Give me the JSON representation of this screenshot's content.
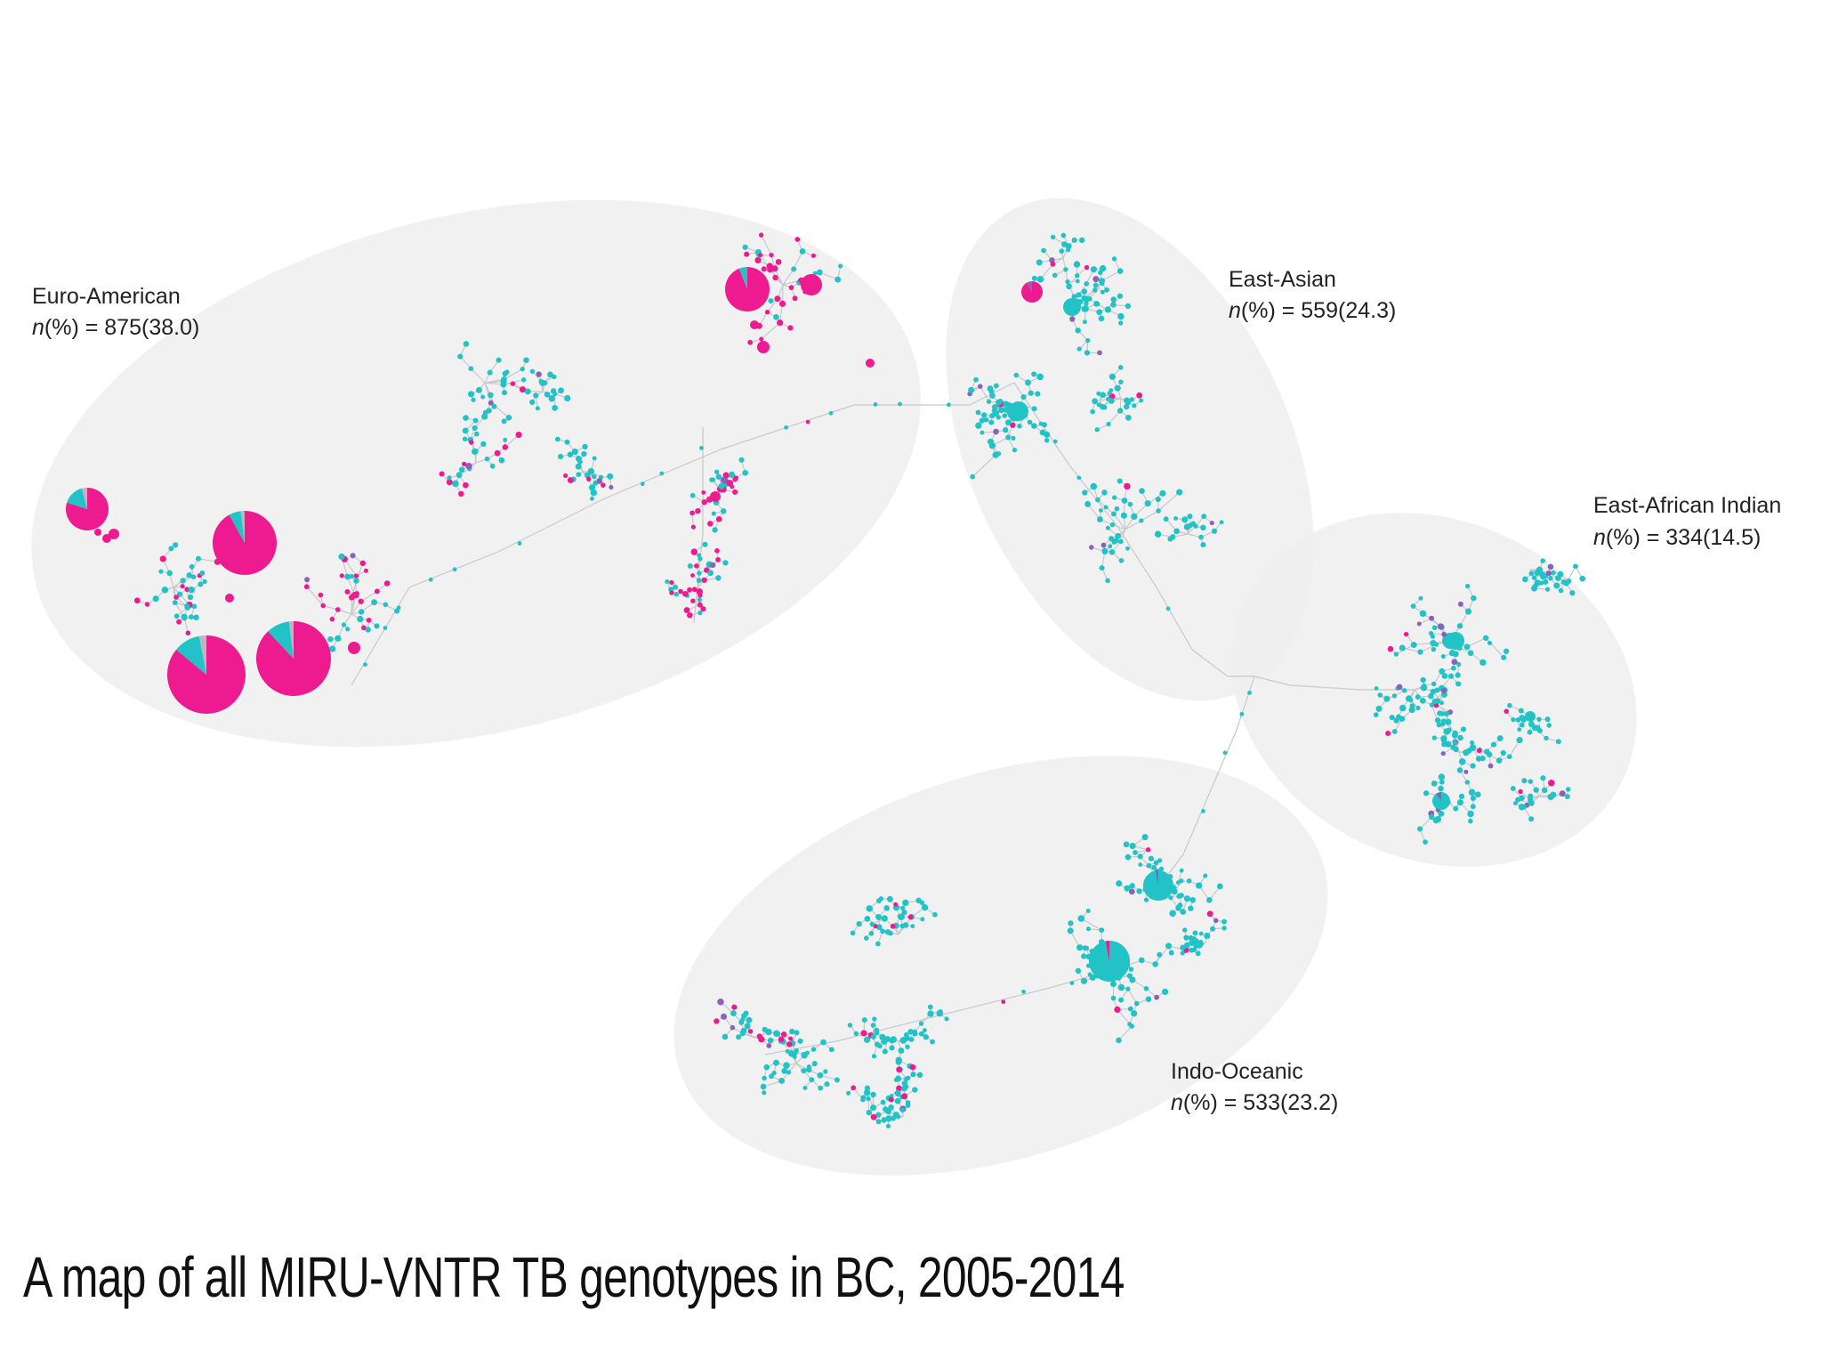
{
  "caption": "A map of all MIRU-VNTR TB genotypes in BC, 2005-2014",
  "colors": {
    "primary_node": "#22c3c6",
    "secondary_node": "#ee1a8f",
    "tertiary_node": "#8a62b8",
    "other_slice": "#b8b8c0",
    "region_fill": "#efeef0",
    "edge": "#c8c8cc"
  },
  "lineages": [
    {
      "id": "euro-american",
      "name": "Euro-American",
      "count_prefix": "n",
      "count_suffix": "(%) = 875(38.0)"
    },
    {
      "id": "east-asian",
      "name": "East-Asian",
      "count_prefix": "n",
      "count_suffix": "(%) = 559(24.3)"
    },
    {
      "id": "east-african-indian",
      "name": "East-African Indian",
      "count_prefix": "n",
      "count_suffix": "(%) = 334(14.5)"
    },
    {
      "id": "indo-oceanic",
      "name": "Indo-Oceanic",
      "count_prefix": "n",
      "count_suffix": "(%) = 533(23.2)"
    }
  ]
}
